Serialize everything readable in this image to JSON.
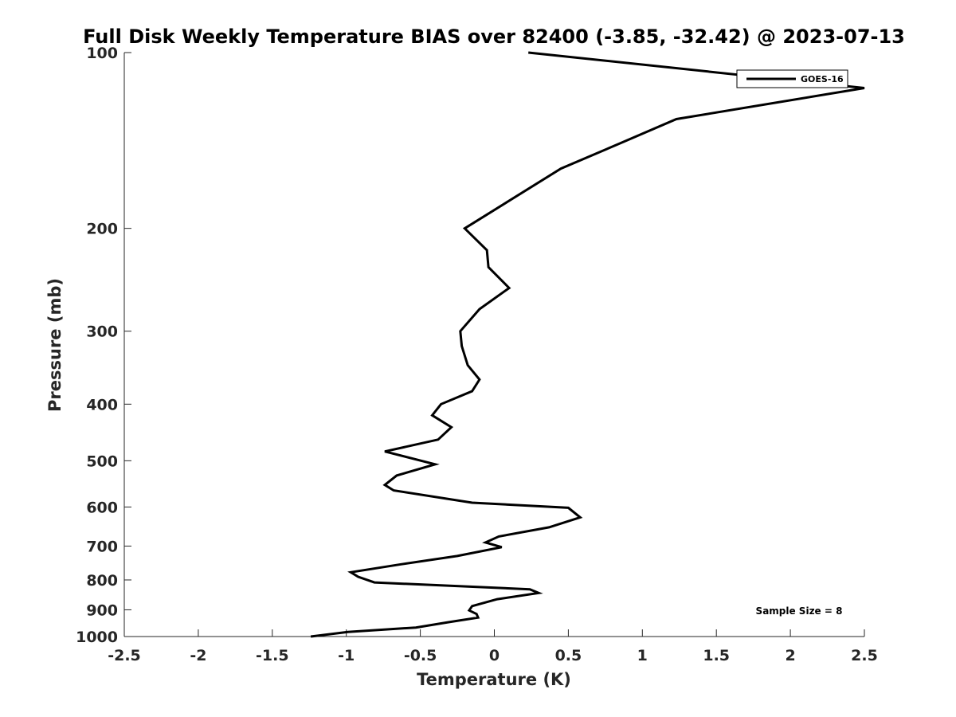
{
  "chart_data": {
    "type": "line",
    "title": "Full Disk Weekly Temperature BIAS over 82400 (-3.85, -32.42) @ 2023-07-13",
    "xlabel": "Temperature (K)",
    "ylabel": "Pressure (mb)",
    "xlim": [
      -2.5,
      2.5
    ],
    "ylim": [
      100,
      1000
    ],
    "y_scale": "log",
    "y_reversed": true,
    "grid": false,
    "legend_placement": "top-right",
    "xticks": [
      -2.5,
      -2,
      -1.5,
      -1,
      -0.5,
      0,
      0.5,
      1,
      1.5,
      2,
      2.5
    ],
    "xtick_labels": [
      "-2.5",
      "-2",
      "-1.5",
      "-1",
      "-0.5",
      "0",
      "0.5",
      "1",
      "1.5",
      "2",
      "2.5"
    ],
    "yticks": [
      100,
      200,
      300,
      400,
      500,
      600,
      700,
      800,
      900,
      1000
    ],
    "ytick_labels": [
      "100",
      "200",
      "300",
      "400",
      "500",
      "600",
      "700",
      "800",
      "900",
      "1000"
    ],
    "series": [
      {
        "name": "GOES-16",
        "color": "#000000",
        "points": [
          [
            0.23,
            100
          ],
          [
            2.5,
            115
          ],
          [
            1.23,
            130
          ],
          [
            0.85,
            143
          ],
          [
            0.45,
            158
          ],
          [
            -0.2,
            200
          ],
          [
            -0.05,
            218
          ],
          [
            -0.04,
            233
          ],
          [
            0.1,
            253
          ],
          [
            -0.1,
            275
          ],
          [
            -0.23,
            300
          ],
          [
            -0.22,
            318
          ],
          [
            -0.18,
            343
          ],
          [
            -0.1,
            363
          ],
          [
            -0.15,
            380
          ],
          [
            -0.36,
            400
          ],
          [
            -0.42,
            418
          ],
          [
            -0.29,
            438
          ],
          [
            -0.38,
            460
          ],
          [
            -0.74,
            482
          ],
          [
            -0.4,
            507
          ],
          [
            -0.66,
            530
          ],
          [
            -0.74,
            550
          ],
          [
            -0.68,
            562
          ],
          [
            -0.15,
            590
          ],
          [
            0.5,
            602
          ],
          [
            0.58,
            625
          ],
          [
            0.37,
            650
          ],
          [
            0.03,
            674
          ],
          [
            -0.06,
            690
          ],
          [
            0.05,
            703
          ],
          [
            -0.25,
            728
          ],
          [
            -0.63,
            752
          ],
          [
            -0.97,
            776
          ],
          [
            -0.92,
            790
          ],
          [
            -0.81,
            808
          ],
          [
            0.24,
            830
          ],
          [
            0.3,
            842
          ],
          [
            0.02,
            863
          ],
          [
            -0.15,
            887
          ],
          [
            -0.17,
            902
          ],
          [
            -0.12,
            915
          ],
          [
            -0.11,
            928
          ],
          [
            -0.31,
            945
          ],
          [
            -0.53,
            965
          ],
          [
            -0.99,
            982
          ],
          [
            -1.24,
            1000
          ]
        ]
      }
    ],
    "annotations": [
      "Sample Size = 8"
    ]
  }
}
